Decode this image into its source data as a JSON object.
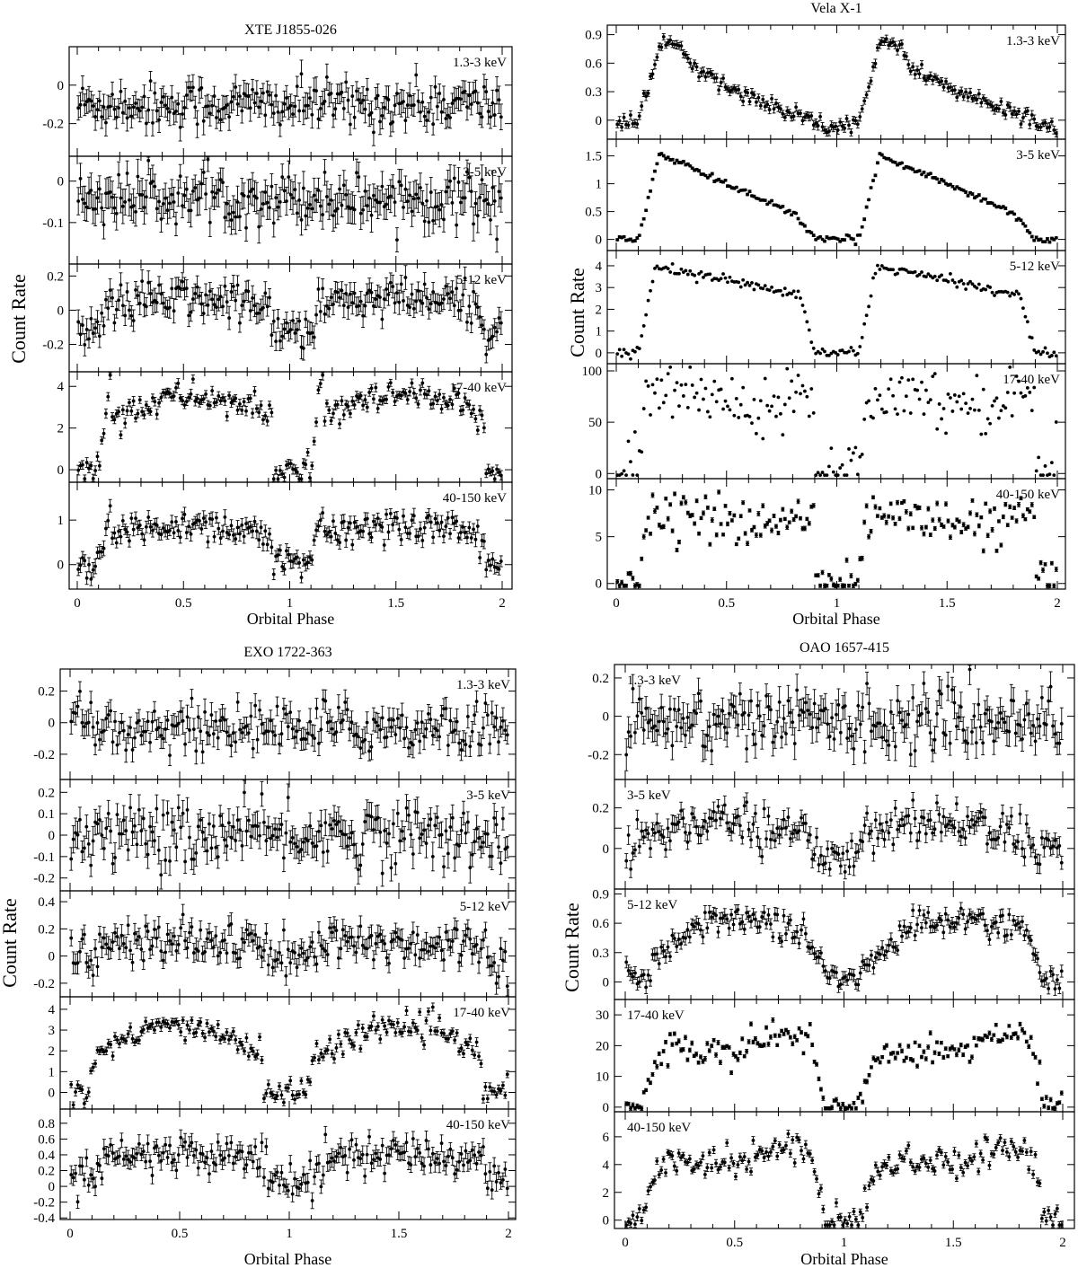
{
  "figure": {
    "y_label": "Count Rate",
    "x_label": "Orbital Phase"
  },
  "chart_data": [
    {
      "type": "scatter",
      "title": "XTE J1855-026",
      "xlabel": "Orbital Phase",
      "ylabel": "Count Rate",
      "xlim": [
        -0.05,
        2.05
      ],
      "x_ticks": [
        "0",
        "0.5",
        "1",
        "1.5",
        "2"
      ],
      "grid": false,
      "panels": [
        {
          "name": "1.3-3 keV",
          "ylim": [
            -0.37,
            0.2
          ],
          "y_ticks": [
            0,
            -0.2
          ],
          "y_tick_labels": [
            "0",
            "-0.2"
          ],
          "profile": "flat",
          "level": -0.1,
          "amp": 0,
          "noise": 0.06,
          "err": 0.06
        },
        {
          "name": "3-5 keV",
          "ylim": [
            -0.2,
            0.06
          ],
          "y_ticks": [
            0,
            -0.1
          ],
          "y_tick_labels": [
            "0",
            "-0.1"
          ],
          "profile": "flat",
          "level": -0.04,
          "amp": 0,
          "noise": 0.03,
          "err": 0.035
        },
        {
          "name": "5-12 keV",
          "ylim": [
            -0.36,
            0.27
          ],
          "y_ticks": [
            0.2,
            0,
            -0.2
          ],
          "y_tick_labels": [
            "0.2",
            "0",
            "-0.2"
          ],
          "profile": "weak-eclipse",
          "level": 0.03,
          "amp": 0.17,
          "noise": 0.06,
          "err": 0.06
        },
        {
          "name": "17-40 keV",
          "ylim": [
            -0.6,
            4.7
          ],
          "y_ticks": [
            4,
            2,
            0
          ],
          "y_tick_labels": [
            "4",
            "2",
            "0"
          ],
          "profile": "eclipse",
          "level": 3.3,
          "amp": 3.3,
          "noise": 0.35,
          "err": 0.2
        },
        {
          "name": "40-150 keV",
          "ylim": [
            -0.55,
            1.85
          ],
          "y_ticks": [
            1,
            0
          ],
          "y_tick_labels": [
            "1",
            "0"
          ],
          "profile": "eclipse",
          "level": 0.85,
          "amp": 0.85,
          "noise": 0.18,
          "err": 0.14
        }
      ]
    },
    {
      "type": "scatter",
      "title": "Vela X-1",
      "xlabel": "Orbital Phase",
      "ylabel": "Count Rate",
      "xlim": [
        -0.05,
        2.05
      ],
      "x_ticks": [
        "0",
        "0.5",
        "1",
        "1.5",
        "2"
      ],
      "grid": false,
      "panels": [
        {
          "name": "1.3-3 keV",
          "ylim": [
            -0.2,
            1.0
          ],
          "y_ticks": [
            0.9,
            0.6,
            0.3,
            0
          ],
          "y_tick_labels": [
            "0.9",
            "0.6",
            "0.3",
            "0"
          ],
          "profile": "vela-soft",
          "level": 0.8,
          "amp": 0.8,
          "noise": 0.04,
          "err": 0.04
        },
        {
          "name": "3-5 keV",
          "ylim": [
            -0.2,
            1.8
          ],
          "y_ticks": [
            1.5,
            1,
            0.5,
            0
          ],
          "y_tick_labels": [
            "1.5",
            "1",
            "0.5",
            "0"
          ],
          "profile": "vela-mid",
          "level": 1.6,
          "amp": 1.6,
          "noise": 0.03,
          "err": 0.02
        },
        {
          "name": "5-12 keV",
          "ylim": [
            -0.5,
            4.7
          ],
          "y_ticks": [
            4,
            3,
            2,
            1,
            0
          ],
          "y_tick_labels": [
            "4",
            "3",
            "2",
            "1",
            "0"
          ],
          "profile": "vela-hard",
          "level": 3.8,
          "amp": 3.8,
          "noise": 0.1,
          "err": 0.03
        },
        {
          "name": "17-40 keV",
          "ylim": [
            -5,
            107
          ],
          "y_ticks": [
            100,
            50,
            0
          ],
          "y_tick_labels": [
            "100",
            "50",
            "0"
          ],
          "profile": "vela-wild",
          "level": 82,
          "amp": 82,
          "noise": 14,
          "err": 0.5
        },
        {
          "name": "40-150 keV",
          "ylim": [
            -0.6,
            11.2
          ],
          "y_ticks": [
            10,
            5,
            0
          ],
          "y_tick_labels": [
            "10",
            "5",
            "0"
          ],
          "profile": "vela-wild",
          "level": 7.5,
          "amp": 7.5,
          "noise": 1.2,
          "err": 0.2
        }
      ]
    },
    {
      "type": "scatter",
      "title": "EXO 1722-363",
      "xlabel": "Orbital Phase",
      "ylabel": "Count Rate",
      "xlim": [
        -0.03,
        2.04
      ],
      "x_ticks": [
        "0",
        "0.5",
        "1",
        "1.5",
        "2"
      ],
      "grid": false,
      "panels": [
        {
          "name": "1.3-3 keV",
          "ylim": [
            -0.36,
            0.34
          ],
          "y_ticks": [
            0.2,
            0,
            -0.2
          ],
          "y_tick_labels": [
            "0.2",
            "0",
            "-0.2"
          ],
          "profile": "flat",
          "level": -0.03,
          "amp": 0,
          "noise": 0.08,
          "err": 0.07
        },
        {
          "name": "3-5 keV",
          "ylim": [
            -0.26,
            0.26
          ],
          "y_ticks": [
            0.2,
            0.1,
            0,
            -0.1,
            -0.2
          ],
          "y_tick_labels": [
            "0.2",
            "0.1",
            "0",
            "-0.1",
            "-0.2"
          ],
          "profile": "flat",
          "level": 0.0,
          "amp": 0,
          "noise": 0.07,
          "err": 0.06
        },
        {
          "name": "5-12 keV",
          "ylim": [
            -0.3,
            0.48
          ],
          "y_ticks": [
            0.4,
            0.2,
            0,
            -0.2
          ],
          "y_tick_labels": [
            "0.4",
            "0.2",
            "0",
            "-0.2"
          ],
          "profile": "weak-eclipse",
          "level": 0.08,
          "amp": 0.1,
          "noise": 0.08,
          "err": 0.07
        },
        {
          "name": "17-40 keV",
          "ylim": [
            -0.8,
            4.6
          ],
          "y_ticks": [
            4,
            3,
            2,
            1,
            0
          ],
          "y_tick_labels": [
            "4",
            "3",
            "2",
            "1",
            "0"
          ],
          "profile": "exo",
          "level": 2.7,
          "amp": 2.7,
          "noise": 0.3,
          "err": 0.18
        },
        {
          "name": "40-150 keV",
          "ylim": [
            -0.42,
            0.98
          ],
          "y_ticks": [
            0.8,
            0.6,
            0.4,
            0.2,
            0,
            -0.2,
            -0.4
          ],
          "y_tick_labels": [
            "0.8",
            "0.6",
            "0.4",
            "0.2",
            "0",
            "-0.2",
            "-0.4"
          ],
          "profile": "weak-eclipse",
          "level": 0.35,
          "amp": 0.25,
          "noise": 0.12,
          "err": 0.1
        }
      ]
    },
    {
      "type": "scatter",
      "title": "OAO 1657-415",
      "xlabel": "Orbital Phase",
      "ylabel": "Count Rate",
      "xlim": [
        -0.05,
        2.05
      ],
      "x_ticks": [
        "0",
        "0.5",
        "1",
        "1.5",
        "2"
      ],
      "grid": false,
      "panels": [
        {
          "name": "1.3-3 keV",
          "ylim": [
            -0.33,
            0.27
          ],
          "y_ticks": [
            0.2,
            0,
            -0.2
          ],
          "y_tick_labels": [
            "0.2",
            "0",
            "-0.2"
          ],
          "profile": "flat",
          "level": -0.02,
          "amp": 0,
          "noise": 0.08,
          "err": 0.07
        },
        {
          "name": "3-5 keV",
          "ylim": [
            -0.2,
            0.34
          ],
          "y_ticks": [
            0.2,
            0.1,
            0
          ],
          "y_tick_labels": [
            "0.2",
            "",
            "0"
          ],
          "profile": "oao-soft",
          "level": 0.15,
          "amp": 0.17,
          "noise": 0.05,
          "err": 0.04
        },
        {
          "name": "5-12 keV",
          "ylim": [
            -0.18,
            0.95
          ],
          "y_ticks": [
            0.9,
            0.6,
            0.3,
            0
          ],
          "y_tick_labels": [
            "0.9",
            "0.6",
            "0.3",
            "0"
          ],
          "profile": "oao-mid",
          "level": 0.65,
          "amp": 0.65,
          "noise": 0.07,
          "err": 0.06
        },
        {
          "name": "17-40 keV",
          "ylim": [
            -1.5,
            35
          ],
          "y_ticks": [
            30,
            20,
            10,
            0
          ],
          "y_tick_labels": [
            "30",
            "20",
            "10",
            "0"
          ],
          "profile": "oao-hard",
          "level": 22,
          "amp": 22,
          "noise": 2.5,
          "err": 0.6
        },
        {
          "name": "40-150 keV",
          "ylim": [
            -0.6,
            7.8
          ],
          "y_ticks": [
            6,
            4,
            2,
            0
          ],
          "y_tick_labels": [
            "6",
            "4",
            "2",
            "0"
          ],
          "profile": "oao-hard",
          "level": 5,
          "amp": 5,
          "noise": 0.55,
          "err": 0.25
        }
      ]
    }
  ]
}
